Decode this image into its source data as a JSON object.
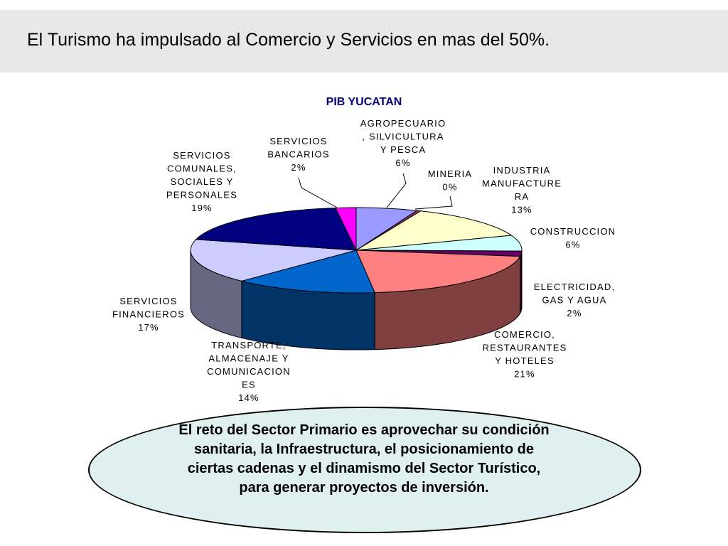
{
  "slide": {
    "title": "El Turismo ha impulsado al Comercio y Servicios en mas del 50%.",
    "callout_text": "El reto del Sector Primario es aprovechar su condición sanitaria, la Infraestructura, el posicionamiento de ciertas cadenas y el dinamismo del Sector Turístico, para generar proyectos de inversión."
  },
  "chart_data": {
    "type": "pie",
    "title": "PIB YUCATAN",
    "title_color": "#000080",
    "three_d": true,
    "slices": [
      {
        "label": "AGROPECUARIO\n, SILVICULTURA\nY PESCA",
        "value": 6,
        "value_label": "6%",
        "color": "#9999ff"
      },
      {
        "label": "MINERIA",
        "value": 0.4,
        "value_label": "0%",
        "color": "#993366"
      },
      {
        "label": "INDUSTRIA\nMANUFACTURE\nRA",
        "value": 13,
        "value_label": "13%",
        "color": "#ffffcc"
      },
      {
        "label": "CONSTRUCCION",
        "value": 6,
        "value_label": "6%",
        "color": "#ccffff"
      },
      {
        "label": "ELECTRICIDAD,\nGAS Y AGUA",
        "value": 2,
        "value_label": "2%",
        "color": "#660066"
      },
      {
        "label": "COMERCIO,\nRESTAURANTES\nY HOTELES",
        "value": 21,
        "value_label": "21%",
        "color": "#ff8080"
      },
      {
        "label": "TRANSPORTE,\nALMACENAJE Y\nCOMUNICACION\nES",
        "value": 14,
        "value_label": "14%",
        "color": "#0066cc"
      },
      {
        "label": "SERVICIOS\nFINANCIEROS",
        "value": 17,
        "value_label": "17%",
        "color": "#ccccff"
      },
      {
        "label": "SERVICIOS\nCOMUNALES,\nSOCIALES Y\nPERSONALES",
        "value": 19,
        "value_label": "19%",
        "color": "#000080"
      },
      {
        "label": "SERVICIOS\nBANCARIOS",
        "value": 2,
        "value_label": "2%",
        "color": "#ff00ff"
      }
    ]
  }
}
